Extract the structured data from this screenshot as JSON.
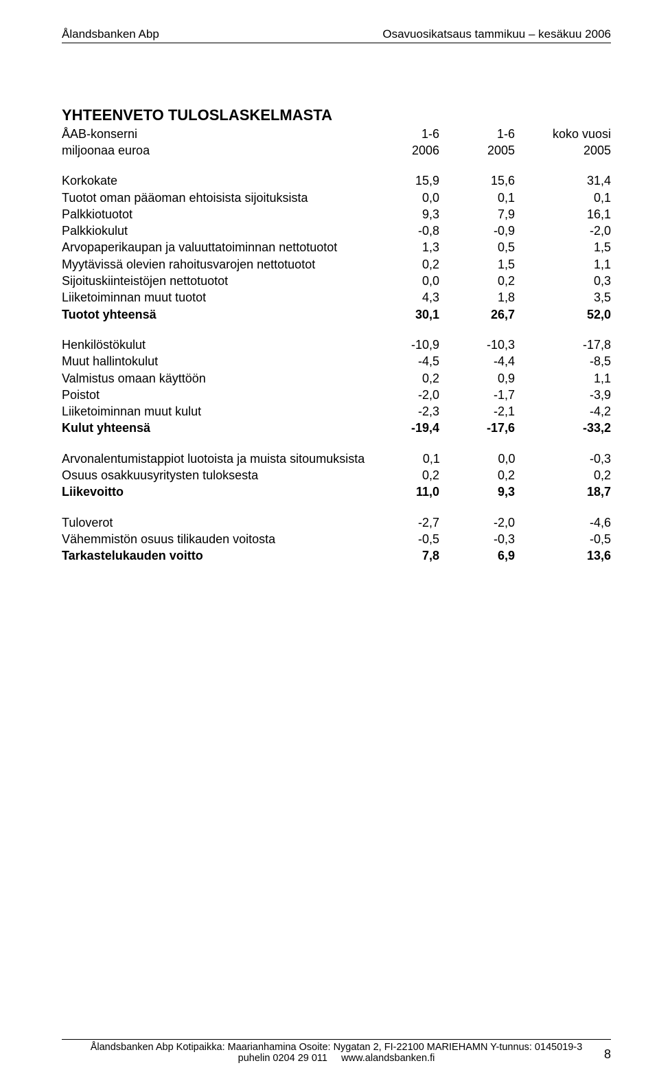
{
  "header": {
    "left": "Ålandsbanken Abp",
    "right": "Osavuosikatsaus tammikuu – kesäkuu 2006"
  },
  "title": "YHTEENVETO TULOSLASKELMASTA",
  "subheader": {
    "r1": {
      "label": "ÅAB-konserni",
      "c1": "1-6",
      "c2": "1-6",
      "c3": "koko vuosi"
    },
    "r2": {
      "label": "miljoonaa euroa",
      "c1": "2006",
      "c2": "2005",
      "c3": "2005"
    }
  },
  "sections": [
    {
      "rows": [
        {
          "label": "Korkokate",
          "c1": "15,9",
          "c2": "15,6",
          "c3": "31,4"
        },
        {
          "label": "Tuotot oman pääoman ehtoisista sijoituksista",
          "c1": "0,0",
          "c2": "0,1",
          "c3": "0,1"
        },
        {
          "label": "Palkkiotuotot",
          "c1": "9,3",
          "c2": "7,9",
          "c3": "16,1"
        },
        {
          "label": "Palkkiokulut",
          "c1": "-0,8",
          "c2": "-0,9",
          "c3": "-2,0"
        },
        {
          "label": "Arvopaperikaupan ja valuuttatoiminnan nettotuotot",
          "c1": "1,3",
          "c2": "0,5",
          "c3": "1,5"
        },
        {
          "label": "Myytävissä olevien rahoitusvarojen nettotuotot",
          "c1": "0,2",
          "c2": "1,5",
          "c3": "1,1"
        },
        {
          "label": "Sijoituskiinteistöjen nettotuotot",
          "c1": "0,0",
          "c2": "0,2",
          "c3": "0,3"
        },
        {
          "label": "Liiketoiminnan muut tuotot",
          "c1": "4,3",
          "c2": "1,8",
          "c3": "3,5"
        },
        {
          "label": "Tuotot yhteensä",
          "c1": "30,1",
          "c2": "26,7",
          "c3": "52,0",
          "bold": true
        }
      ]
    },
    {
      "rows": [
        {
          "label": "Henkilöstökulut",
          "c1": "-10,9",
          "c2": "-10,3",
          "c3": "-17,8"
        },
        {
          "label": "Muut hallintokulut",
          "c1": "-4,5",
          "c2": "-4,4",
          "c3": "-8,5"
        },
        {
          "label": "Valmistus omaan käyttöön",
          "c1": "0,2",
          "c2": "0,9",
          "c3": "1,1"
        },
        {
          "label": "Poistot",
          "c1": "-2,0",
          "c2": "-1,7",
          "c3": "-3,9"
        },
        {
          "label": "Liiketoiminnan muut kulut",
          "c1": "-2,3",
          "c2": "-2,1",
          "c3": "-4,2"
        },
        {
          "label": "Kulut yhteensä",
          "c1": "-19,4",
          "c2": "-17,6",
          "c3": "-33,2",
          "bold": true
        }
      ]
    },
    {
      "rows": [
        {
          "label": "Arvonalentumistappiot luotoista ja muista sitoumuksista",
          "c1": "0,1",
          "c2": "0,0",
          "c3": "-0,3"
        },
        {
          "label": "Osuus osakkuusyritysten tuloksesta",
          "c1": "0,2",
          "c2": "0,2",
          "c3": "0,2"
        },
        {
          "label": "Liikevoitto",
          "c1": "11,0",
          "c2": "9,3",
          "c3": "18,7",
          "bold": true
        }
      ]
    },
    {
      "rows": [
        {
          "label": "Tuloverot",
          "c1": "-2,7",
          "c2": "-2,0",
          "c3": "-4,6"
        },
        {
          "label": "Vähemmistön osuus tilikauden voitosta",
          "c1": "-0,5",
          "c2": "-0,3",
          "c3": "-0,5"
        },
        {
          "label": "Tarkastelukauden voitto",
          "c1": "7,8",
          "c2": "6,9",
          "c3": "13,6",
          "bold": true
        }
      ]
    }
  ],
  "footer": {
    "line1": "Ålandsbanken Abp  Kotipaikka: Maarianhamina  Osoite: Nygatan 2, FI-22100 MARIEHAMN  Y-tunnus: 0145019-3",
    "line2a": "puhelin 0204 29 011",
    "line2b": "www.alandsbanken.fi",
    "page": "8"
  }
}
